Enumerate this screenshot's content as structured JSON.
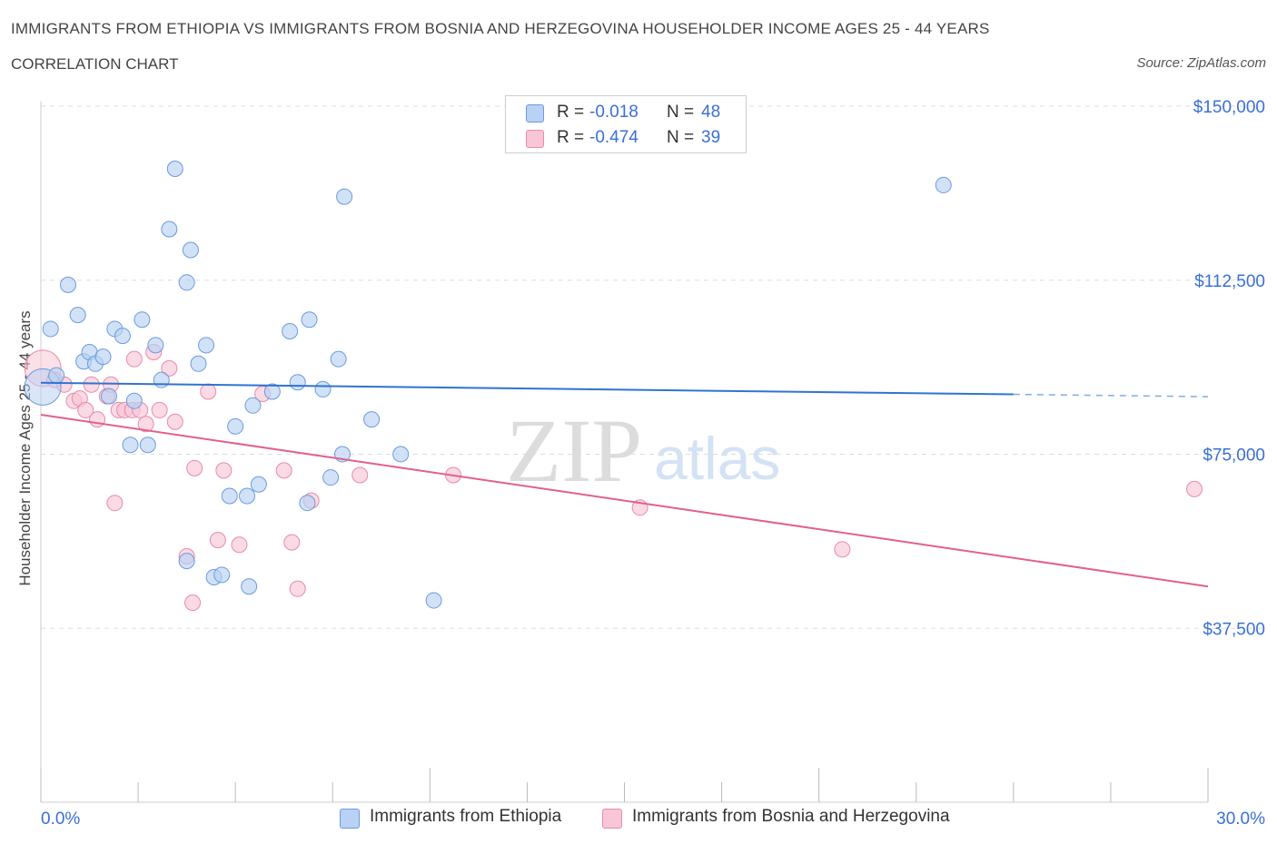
{
  "title": "IMMIGRANTS FROM ETHIOPIA VS IMMIGRANTS FROM BOSNIA AND HERZEGOVINA HOUSEHOLDER INCOME AGES 25 - 44 YEARS",
  "subtitle": "CORRELATION CHART",
  "source": "Source: ZipAtlas.com",
  "watermark": {
    "zip": "ZIP",
    "atlas": "atlas"
  },
  "legend": {
    "rows": [
      {
        "r_label": "R =",
        "r_value": "-0.018",
        "n_label": "N =",
        "n_value": "48"
      },
      {
        "r_label": "R =",
        "r_value": "-0.474",
        "n_label": "N =",
        "n_value": "39"
      }
    ]
  },
  "colors": {
    "ethiopia_fill": "#b9d2f3",
    "ethiopia_stroke": "#6b9ae0",
    "ethiopia_line": "#2f74d0",
    "bosnia_fill": "#f8c6d6",
    "bosnia_stroke": "#e98aa9",
    "bosnia_line": "#e0608e",
    "axis_text": "#3a6fd8",
    "grid": "#dddddd"
  },
  "chart_data": {
    "type": "scatter",
    "title": "IMMIGRANTS FROM ETHIOPIA VS IMMIGRANTS FROM BOSNIA AND HERZEGOVINA HOUSEHOLDER INCOME AGES 25 - 44 YEARS",
    "xlabel": "",
    "ylabel": "Householder Income Ages 25 - 44 years",
    "xlim": [
      0,
      30
    ],
    "ylim": [
      0,
      150000
    ],
    "x_tick_labels": [
      {
        "value": 0,
        "label": "0.0%"
      },
      {
        "value": 30,
        "label": "30.0%"
      }
    ],
    "y_tick_labels": [
      {
        "value": 37500,
        "label": "$37,500"
      },
      {
        "value": 75000,
        "label": "$75,000"
      },
      {
        "value": 112500,
        "label": "$112,500"
      },
      {
        "value": 150000,
        "label": "$150,000"
      }
    ],
    "legend_position": "bottom",
    "series": [
      {
        "name": "Immigrants from Ethiopia",
        "r": -0.018,
        "n": 48,
        "trend": {
          "x0": 0,
          "y0": 90400,
          "x1": 25,
          "y1": 87900,
          "dashed_to_x": 30,
          "dashed_to_y": 87400
        },
        "points": [
          [
            0.05,
            89500,
            "big"
          ],
          [
            0.25,
            102000
          ],
          [
            0.4,
            92000
          ],
          [
            0.7,
            111500
          ],
          [
            0.95,
            105000
          ],
          [
            1.1,
            95000
          ],
          [
            1.25,
            97000
          ],
          [
            1.4,
            94500
          ],
          [
            1.6,
            96000
          ],
          [
            1.75,
            87500
          ],
          [
            1.9,
            102000
          ],
          [
            2.1,
            100500
          ],
          [
            2.3,
            77000
          ],
          [
            2.4,
            86500
          ],
          [
            2.6,
            104000
          ],
          [
            2.75,
            77000
          ],
          [
            2.95,
            98500
          ],
          [
            3.1,
            91000
          ],
          [
            3.3,
            123500
          ],
          [
            3.45,
            136500
          ],
          [
            3.75,
            52000
          ],
          [
            3.75,
            112000
          ],
          [
            3.85,
            119000
          ],
          [
            4.05,
            94500
          ],
          [
            4.25,
            98500
          ],
          [
            4.45,
            48500
          ],
          [
            4.65,
            49000
          ],
          [
            4.85,
            66000
          ],
          [
            5.0,
            81000
          ],
          [
            5.3,
            66000
          ],
          [
            5.35,
            46500
          ],
          [
            5.45,
            85500
          ],
          [
            5.6,
            68500
          ],
          [
            5.95,
            88500
          ],
          [
            6.4,
            101500
          ],
          [
            6.6,
            90500
          ],
          [
            6.85,
            64500
          ],
          [
            6.9,
            104000
          ],
          [
            7.25,
            89000
          ],
          [
            7.45,
            70000
          ],
          [
            7.65,
            95500
          ],
          [
            7.75,
            75000
          ],
          [
            7.8,
            130500
          ],
          [
            8.5,
            82500
          ],
          [
            9.25,
            75000
          ],
          [
            10.1,
            43500
          ],
          [
            23.2,
            133000
          ]
        ]
      },
      {
        "name": "Immigrants from Bosnia and Herzegovina",
        "r": -0.474,
        "n": 39,
        "trend": {
          "x0": 0,
          "y0": 83500,
          "x1": 30,
          "y1": 46500
        },
        "points": [
          [
            0.05,
            93500,
            "big"
          ],
          [
            0.35,
            91000
          ],
          [
            0.6,
            90000
          ],
          [
            0.85,
            86500
          ],
          [
            1.0,
            87000
          ],
          [
            1.15,
            84500
          ],
          [
            1.3,
            90000
          ],
          [
            1.45,
            82500
          ],
          [
            1.7,
            87500
          ],
          [
            1.8,
            90000
          ],
          [
            1.9,
            64500
          ],
          [
            2.0,
            84500
          ],
          [
            2.15,
            84500
          ],
          [
            2.35,
            84500
          ],
          [
            2.4,
            95500
          ],
          [
            2.55,
            84500
          ],
          [
            2.7,
            81500
          ],
          [
            2.9,
            97000
          ],
          [
            3.05,
            84500
          ],
          [
            3.3,
            93500
          ],
          [
            3.45,
            82000
          ],
          [
            3.75,
            53000
          ],
          [
            3.9,
            43000
          ],
          [
            3.95,
            72000
          ],
          [
            4.3,
            88500
          ],
          [
            4.55,
            56500
          ],
          [
            4.7,
            71500
          ],
          [
            5.1,
            55500
          ],
          [
            5.7,
            88000
          ],
          [
            6.25,
            71500
          ],
          [
            6.45,
            56000
          ],
          [
            6.6,
            46000
          ],
          [
            6.95,
            65000
          ],
          [
            8.2,
            70500
          ],
          [
            10.6,
            70500
          ],
          [
            15.4,
            63500
          ],
          [
            20.6,
            54500
          ],
          [
            29.65,
            67500
          ]
        ]
      }
    ]
  }
}
